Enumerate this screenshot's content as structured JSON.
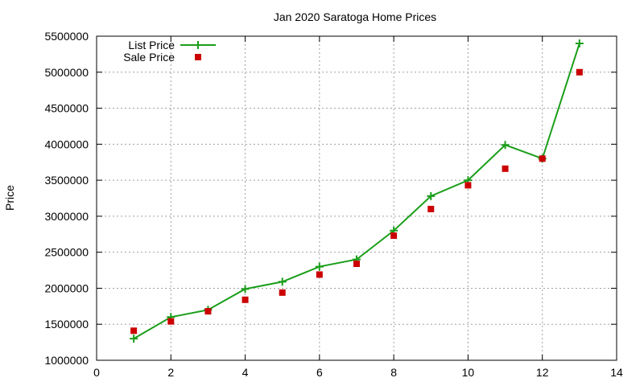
{
  "chart_data": {
    "type": "line",
    "title": "Jan 2020 Saratoga Home Prices",
    "xlabel": "",
    "ylabel": "Price",
    "xlim": [
      0,
      14
    ],
    "ylim": [
      1000000,
      5500000
    ],
    "x_ticks": [
      0,
      2,
      4,
      6,
      8,
      10,
      12,
      14
    ],
    "y_ticks": [
      1000000,
      1500000,
      2000000,
      2500000,
      3000000,
      3500000,
      4000000,
      4500000,
      5000000,
      5500000
    ],
    "grid": true,
    "legend_position": "top-left",
    "series": [
      {
        "name": "List Price",
        "style": "line-with-plus-markers",
        "color": "#1a9e1a",
        "x": [
          1,
          2,
          3,
          4,
          5,
          6,
          7,
          8,
          9,
          10,
          11,
          12,
          13
        ],
        "values": [
          1300000,
          1600000,
          1700000,
          1990000,
          2090000,
          2300000,
          2400000,
          2800000,
          3280000,
          3500000,
          3990000,
          3800000,
          5400000
        ]
      },
      {
        "name": "Sale Price",
        "style": "square-markers",
        "color": "#cc0000",
        "x": [
          1,
          2,
          3,
          4,
          5,
          6,
          7,
          8,
          9,
          10,
          11,
          12,
          13
        ],
        "values": [
          1410000,
          1540000,
          1680000,
          1840000,
          1940000,
          2190000,
          2340000,
          2730000,
          3100000,
          3430000,
          3660000,
          3800000,
          5000000
        ]
      }
    ]
  }
}
